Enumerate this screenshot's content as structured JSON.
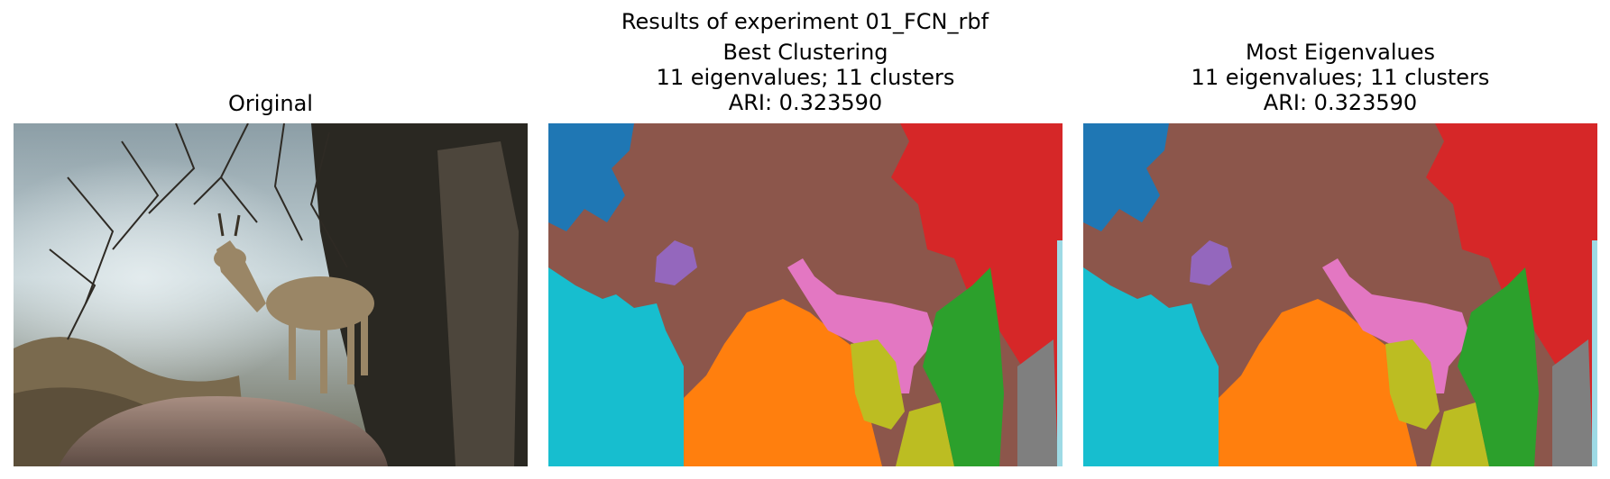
{
  "figure": {
    "suptitle": "Results of experiment 01_FCN_rbf"
  },
  "panels": [
    {
      "title_lines": [
        "Original"
      ]
    },
    {
      "title_lines": [
        "Best Clustering",
        "11 eigenvalues; 11 clusters",
        "ARI: 0.323590"
      ]
    },
    {
      "title_lines": [
        "Most Eigenvalues",
        "11 eigenvalues; 11 clusters",
        "ARI: 0.323590"
      ]
    }
  ],
  "colors": {
    "cluster_blue": "#1f77b4",
    "cluster_brown": "#8c564b",
    "cluster_red": "#d62728",
    "cluster_purple": "#9467bd",
    "cluster_cyan": "#17becf",
    "cluster_orange": "#ff7f0e",
    "cluster_pink": "#e377c2",
    "cluster_olive": "#bcbd22",
    "cluster_green": "#2ca02c",
    "cluster_gray": "#7f7f7f",
    "cluster_lightblue": "#9edae5"
  },
  "images": {
    "original": "photo of a small antelope (klipspringer) standing on a rock among bare branches",
    "segmentation": "spectral clustering segmentation map with 11 colored clusters"
  }
}
